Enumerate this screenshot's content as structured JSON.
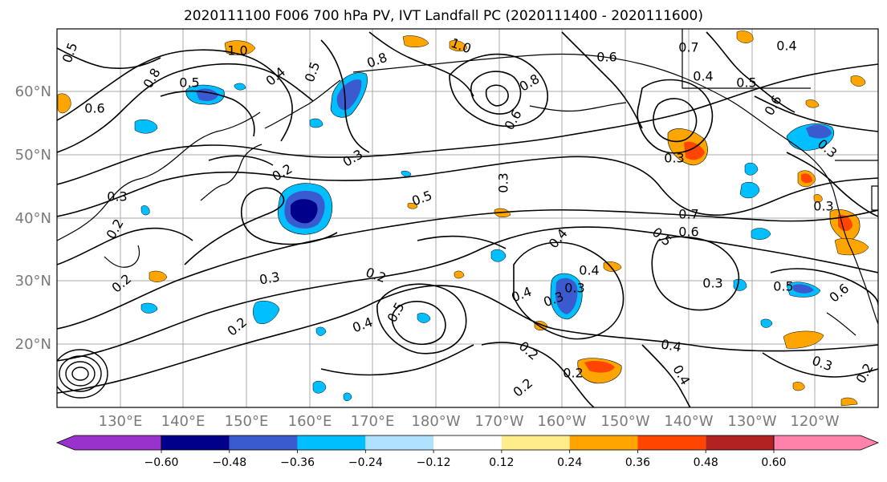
{
  "title": "2020111100 F006 700 hPa PV, IVT Landfall PC (2020111400 - 2020111600)",
  "lat_labels": [
    "60°N",
    "50°N",
    "40°N",
    "30°N",
    "20°N"
  ],
  "lon_labels": [
    "130°E",
    "140°E",
    "150°E",
    "160°E",
    "170°E",
    "180°W",
    "170°W",
    "160°W",
    "150°W",
    "140°W",
    "130°W",
    "120°W"
  ],
  "contour_labels": [
    "0.5",
    "1.0",
    "1.0",
    "0.6",
    "0.4",
    "0.8",
    "0.5",
    "0.6",
    "0.4",
    "0.5",
    "0.7",
    "0.4",
    "0.5",
    "0.6",
    "0.8",
    "0.8",
    "0.6",
    "0.3",
    "0.3",
    "0.3",
    "0.2",
    "0.2",
    "0.3",
    "0.3",
    "0.5",
    "0.3",
    "0.3",
    "0.7",
    "0.6",
    "0.5",
    "0.4",
    "0.4",
    "0.4",
    "0.3",
    "0.4",
    "0.3",
    "0.5",
    "0.6",
    "0.3",
    "0.5",
    "0.2",
    "0.2",
    "0.4",
    "0.2",
    "0.4",
    "0.2",
    "0.3",
    "0.2",
    "0.2",
    "0.2"
  ],
  "colorbar": {
    "colors": [
      "#9932cc",
      "#00008b",
      "#3a5bcf",
      "#00bfff",
      "#b0e2ff",
      "#ffffff",
      "#ffec8b",
      "#ffa500",
      "#ff4500",
      "#b22222",
      "#ff82ab"
    ],
    "tick_labels": [
      "-0.60",
      "-0.48",
      "-0.36",
      "-0.24",
      "-0.12",
      "0.12",
      "0.24",
      "0.36",
      "0.48",
      "0.60"
    ]
  },
  "colors": {
    "grid": "#aaaaaa",
    "contour": "#000000",
    "tick_label": "#7a7a7a"
  }
}
